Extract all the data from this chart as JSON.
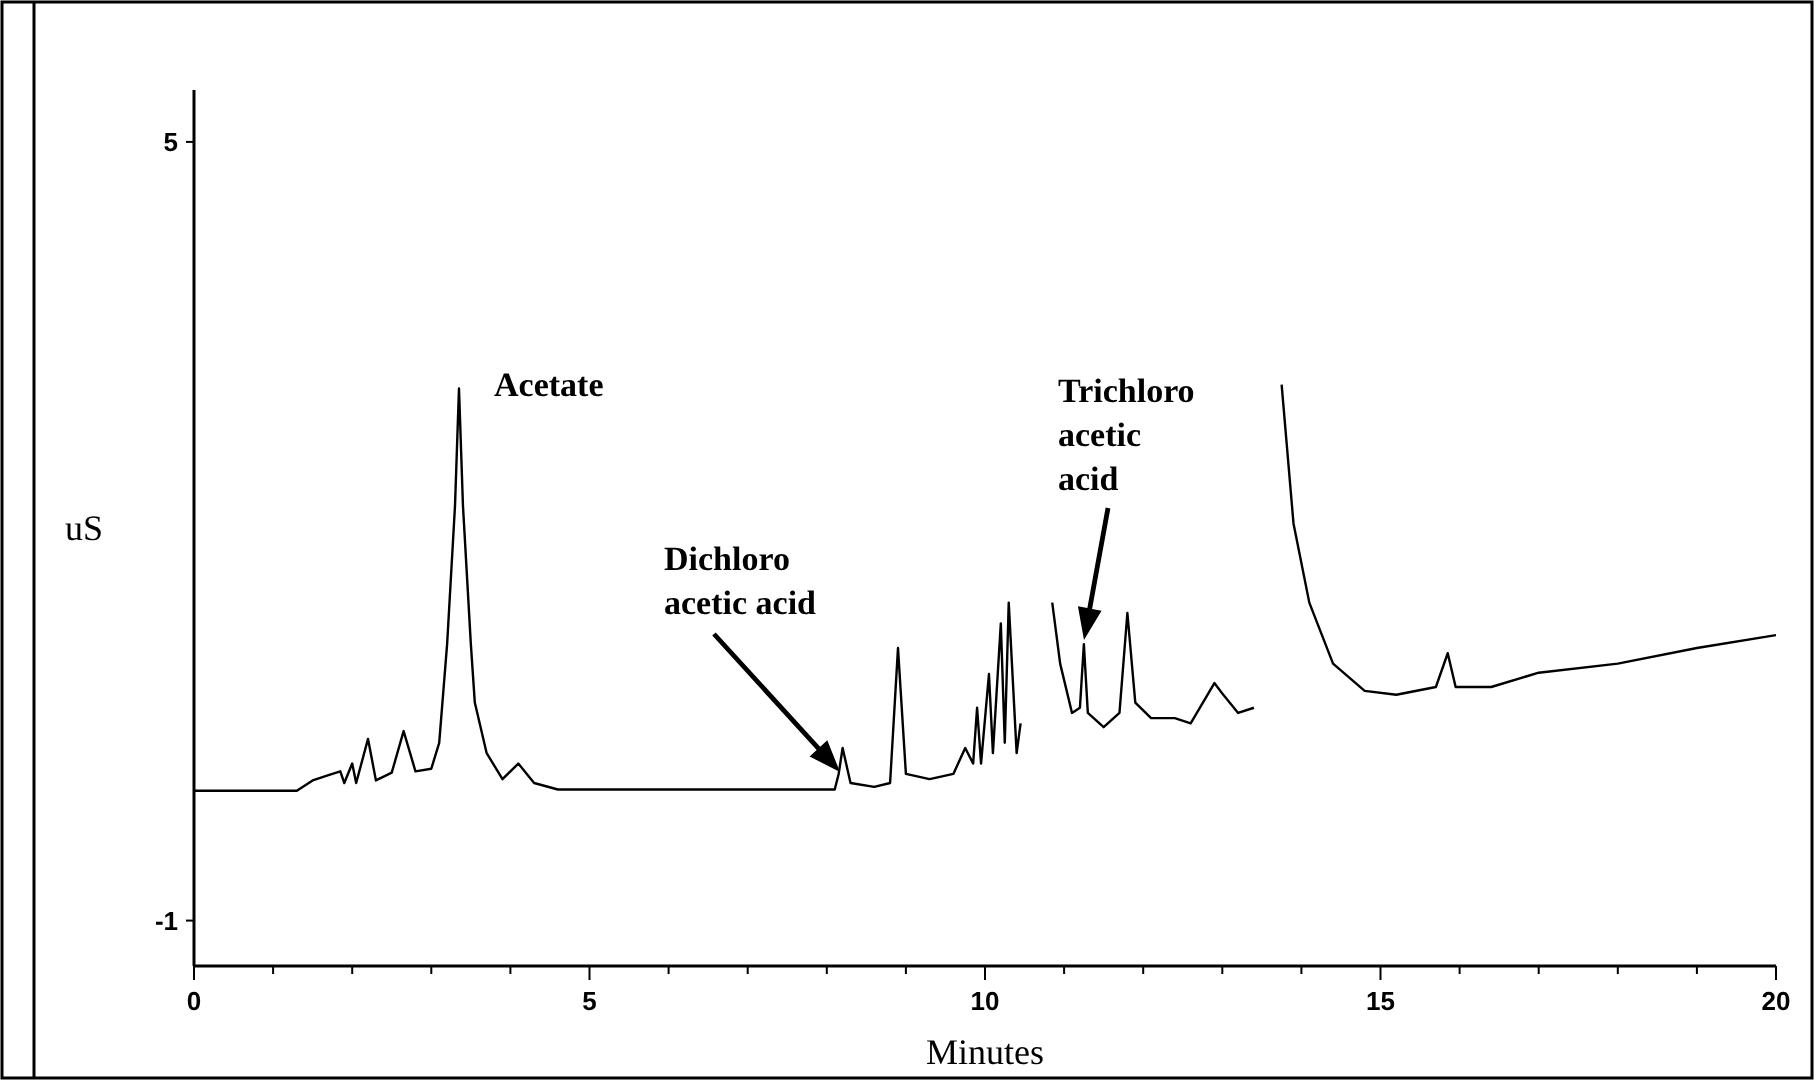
{
  "chart_data": {
    "type": "line",
    "xlabel": "Minutes",
    "ylabel": "uS",
    "xlim": [
      0,
      20
    ],
    "ylim": [
      -1.35,
      5.4
    ],
    "xticks": [
      0,
      {
        "value": 1,
        "label": null
      },
      {
        "value": 2,
        "label": null
      },
      {
        "value": 3,
        "label": null
      },
      {
        "value": 4,
        "label": null
      },
      5,
      {
        "value": 6,
        "label": null
      },
      {
        "value": 7,
        "label": null
      },
      {
        "value": 8,
        "label": null
      },
      {
        "value": 9,
        "label": null
      },
      10,
      {
        "value": 11,
        "label": null
      },
      {
        "value": 12,
        "label": null
      },
      {
        "value": 13,
        "label": null
      },
      {
        "value": 14,
        "label": null
      },
      15,
      {
        "value": 16,
        "label": null
      },
      {
        "value": 17,
        "label": null
      },
      {
        "value": 18,
        "label": null
      },
      {
        "value": 19,
        "label": null
      },
      20
    ],
    "yticks": [
      -1,
      5
    ],
    "grid": false,
    "marker": "none",
    "line_style": "solid",
    "x": [
      0,
      1.3,
      1.5,
      1.7,
      1.85,
      1.9,
      2.0,
      2.05,
      2.2,
      2.3,
      2.5,
      2.65,
      2.8,
      3.0,
      3.1,
      3.2,
      3.3,
      3.35,
      3.4,
      3.5,
      3.55,
      3.7,
      3.9,
      4.1,
      4.3,
      4.6,
      6.0,
      8.1,
      8.15,
      8.2,
      8.3,
      8.6,
      8.8,
      8.9,
      9.0,
      9.3,
      9.6,
      9.75,
      9.85,
      9.9,
      9.95,
      10.05,
      10.1,
      10.2,
      10.25,
      10.3,
      10.4,
      10.45,
      10.55,
      10.8,
      10.85,
      10.95,
      11.1,
      11.2,
      11.25,
      11.3,
      11.5,
      11.7,
      11.8,
      11.9,
      12.1,
      12.4,
      12.6,
      12.9,
      13.0,
      13.2,
      13.4,
      13.45,
      13.7,
      13.75,
      13.9,
      14.1,
      14.4,
      14.8,
      15.2,
      15.7,
      15.85,
      15.95,
      16.4,
      17.0,
      18.0,
      19.0,
      20.0
    ],
    "series": [
      {
        "color": "#000000",
        "values": [
          0,
          0,
          0.08,
          0.12,
          0.15,
          0.06,
          0.21,
          0.06,
          0.4,
          0.08,
          0.14,
          0.46,
          0.15,
          0.17,
          0.37,
          1.13,
          2.2,
          3.1,
          2.2,
          1.13,
          0.68,
          0.29,
          0.09,
          0.21,
          0.06,
          0.01,
          0.01,
          0.01,
          0.13,
          0.33,
          0.06,
          0.03,
          0.06,
          1.1,
          0.13,
          0.09,
          0.13,
          0.33,
          0.21,
          0.64,
          0.21,
          0.9,
          0.29,
          1.29,
          0.37,
          1.45,
          0.29,
          0.52,
          null,
          null,
          1.45,
          0.98,
          0.6,
          0.64,
          1.13,
          0.6,
          0.49,
          0.6,
          1.37,
          0.68,
          0.56,
          0.56,
          0.52,
          0.83,
          0.75,
          0.6,
          0.64,
          null,
          null,
          3.13,
          2.06,
          1.45,
          0.98,
          0.77,
          0.74,
          0.8,
          1.06,
          0.8,
          0.8,
          0.91,
          0.98,
          1.1,
          1.2
        ]
      }
    ],
    "annotations": [
      "Acetate",
      "Dichloro\nacetic acid",
      "Trichloro\nacetic\nacid"
    ]
  }
}
